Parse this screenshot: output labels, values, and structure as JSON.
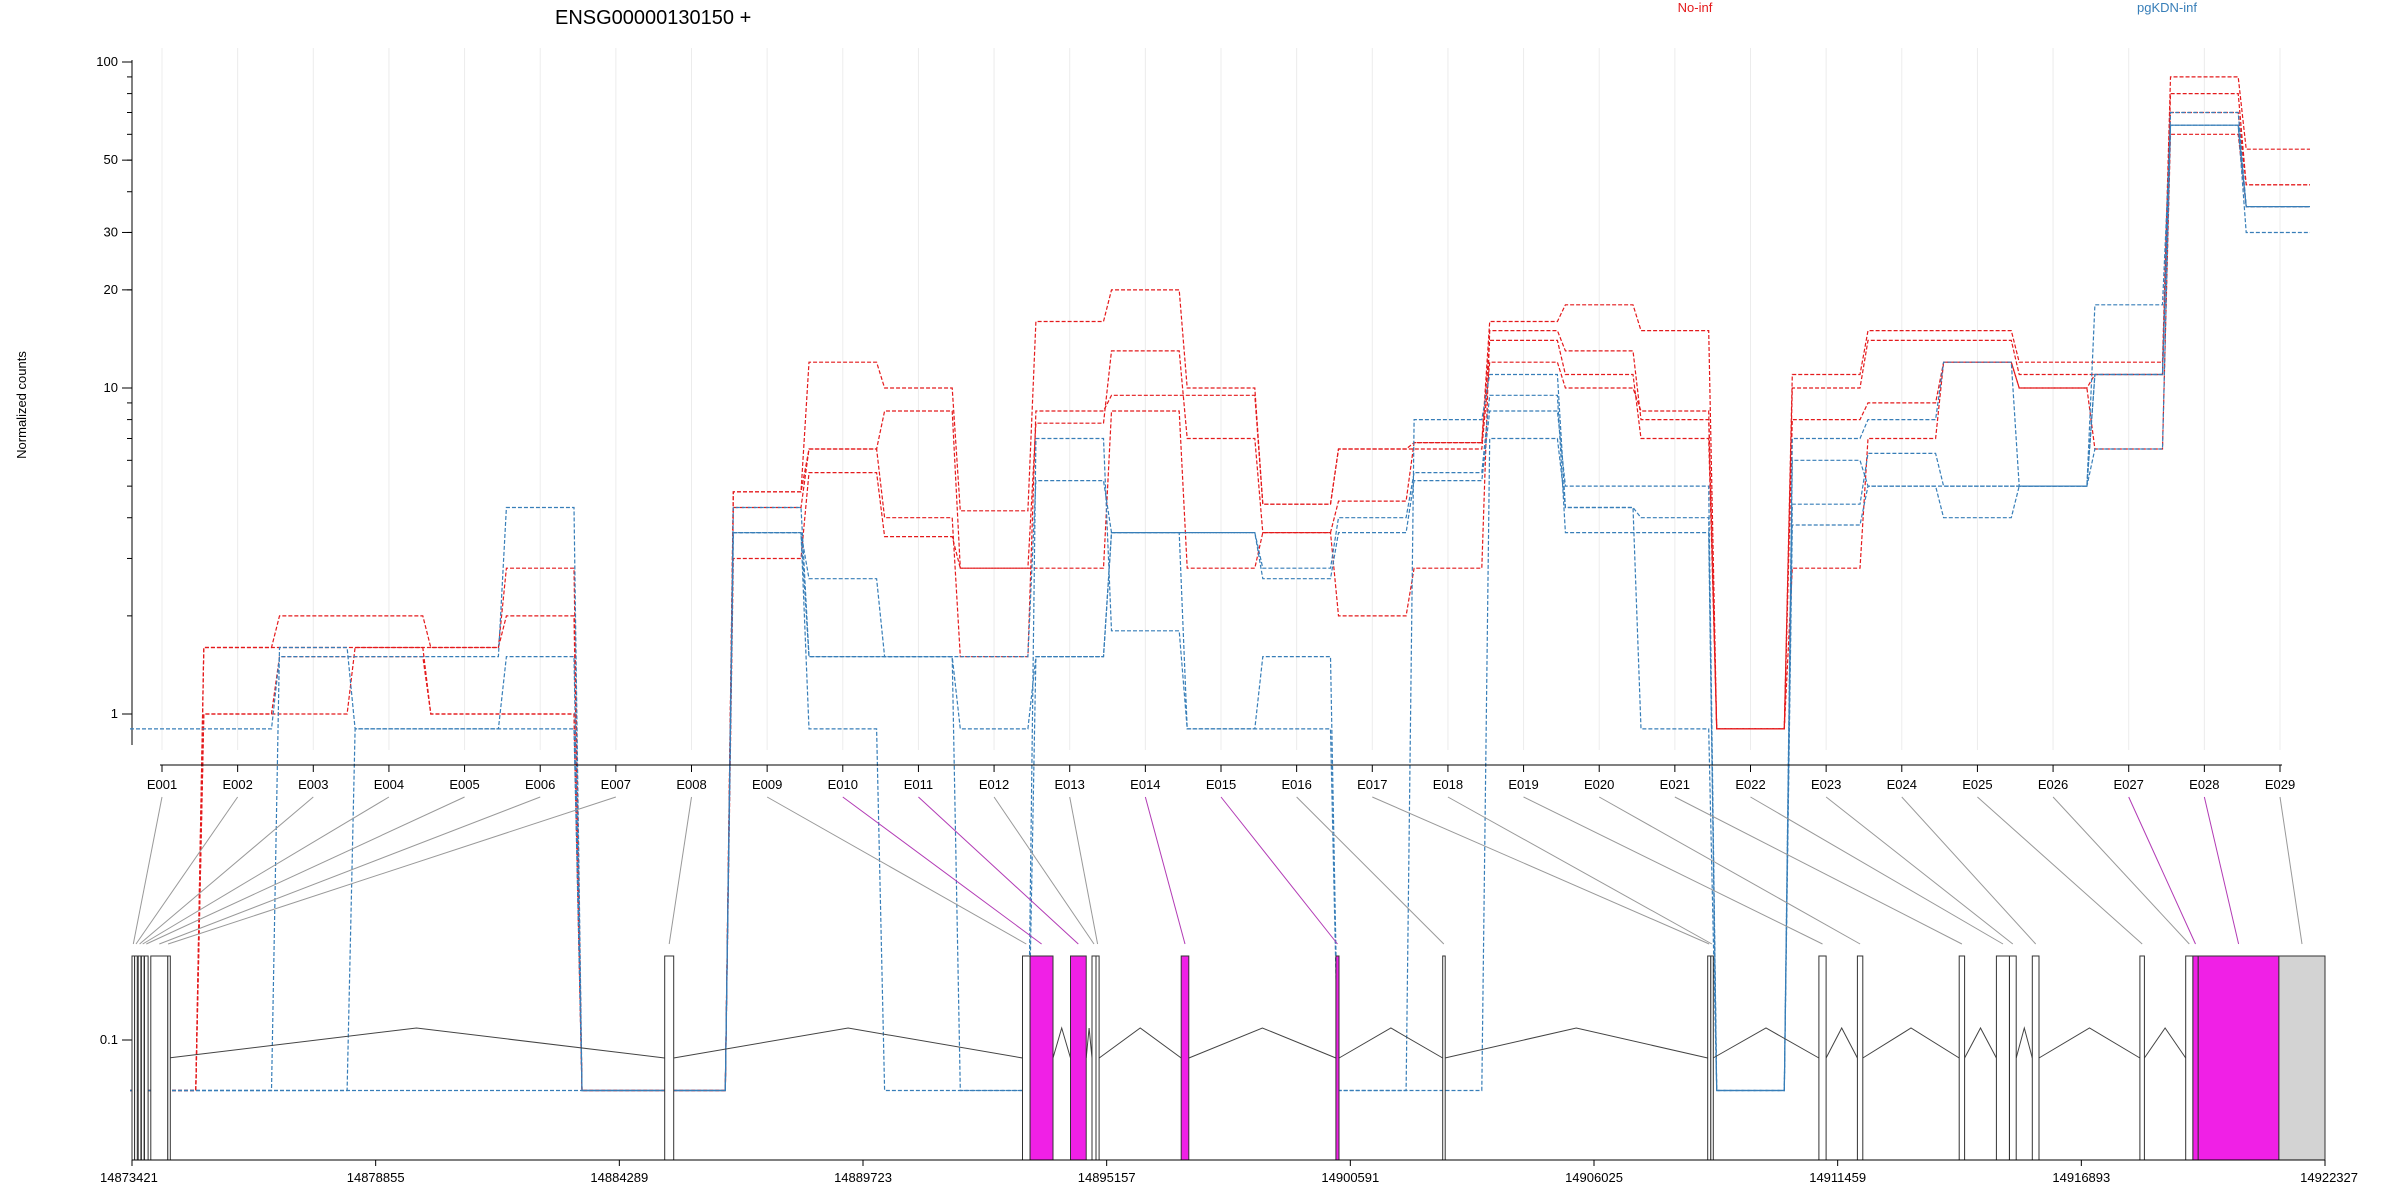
{
  "chart_data": {
    "type": "line",
    "title": "ENSG00000130150 +",
    "ylabel": "Normalized counts",
    "xlabel": "",
    "y_scale": "log",
    "ylim": [
      0.07,
      100
    ],
    "y_ticks": [
      {
        "value": 0.1,
        "label": "0.1"
      },
      {
        "value": 1,
        "label": "1"
      },
      {
        "value": 10,
        "label": "10"
      },
      {
        "value": 20,
        "label": "20"
      },
      {
        "value": 30,
        "label": "30"
      },
      {
        "value": 50,
        "label": "50"
      },
      {
        "value": 100,
        "label": "100"
      }
    ],
    "categories": [
      "E001",
      "E002",
      "E003",
      "E004",
      "E005",
      "E006",
      "E007",
      "E008",
      "E009",
      "E010",
      "E011",
      "E012",
      "E013",
      "E014",
      "E015",
      "E016",
      "E017",
      "E018",
      "E019",
      "E020",
      "E021",
      "E022",
      "E023",
      "E024",
      "E025",
      "E026",
      "E027",
      "E028",
      "E029"
    ],
    "legend": [
      {
        "label": "No-inf",
        "color": "#e41a1c"
      },
      {
        "label": "pgKDN-inf",
        "color": "#377eb8"
      }
    ],
    "series": [
      {
        "group": "No-inf",
        "values": [
          0.07,
          1.6,
          2,
          2,
          1.6,
          2.8,
          0.07,
          0.07,
          4.8,
          12,
          10,
          4.2,
          16,
          20,
          10,
          4.4,
          6.5,
          6.8,
          16,
          18,
          15,
          0.9,
          11,
          15,
          15,
          12,
          12,
          90,
          54
        ]
      },
      {
        "group": "No-inf",
        "values": [
          0.07,
          1,
          1.5,
          1.5,
          1,
          1,
          0.07,
          0.07,
          4.3,
          6.5,
          8.5,
          2.8,
          7.8,
          13,
          7,
          3.6,
          2,
          2.8,
          15,
          13,
          8,
          0.9,
          10,
          14,
          14,
          11,
          11,
          80,
          42
        ]
      },
      {
        "group": "No-inf",
        "values": [
          0.07,
          1.6,
          1.6,
          1.6,
          1.6,
          2,
          0.07,
          0.07,
          4.8,
          6.5,
          4,
          1.5,
          8.5,
          9.5,
          9.5,
          4.4,
          6.5,
          6.5,
          12,
          10,
          8.5,
          0.9,
          8,
          9,
          12,
          10,
          11,
          70,
          42
        ]
      },
      {
        "group": "No-inf",
        "values": [
          0.07,
          1,
          1,
          1.6,
          1,
          1,
          0.07,
          0.07,
          3,
          5.5,
          3.5,
          2.8,
          2.8,
          8.5,
          2.8,
          3.6,
          4.5,
          6.8,
          14,
          11,
          7,
          0.9,
          2.8,
          7,
          12,
          10,
          6.5,
          60,
          36
        ]
      },
      {
        "group": "pgKDN-inf",
        "values": [
          0.9,
          0.9,
          1.5,
          1.5,
          1.5,
          4.3,
          0.07,
          0.07,
          4.3,
          1.5,
          1.5,
          0.9,
          1.5,
          3.6,
          3.6,
          2.8,
          4,
          5.5,
          9.5,
          3.6,
          3.6,
          0.07,
          4.4,
          6.3,
          5,
          5,
          18,
          64,
          30
        ]
      },
      {
        "group": "pgKDN-inf",
        "values": [
          0.07,
          0.07,
          1.6,
          0.9,
          0.9,
          0.9,
          0.07,
          0.07,
          3.6,
          2.6,
          1.5,
          1.5,
          5.2,
          3.6,
          3.6,
          2.6,
          3.6,
          5.2,
          8.5,
          5,
          5,
          0.07,
          3.8,
          5,
          5,
          5,
          11,
          64,
          36
        ]
      },
      {
        "group": "pgKDN-inf",
        "values": [
          0.07,
          0.07,
          0.07,
          0.9,
          0.9,
          1.5,
          0.07,
          0.07,
          3.6,
          1.5,
          1.5,
          0.07,
          7,
          1.8,
          0.9,
          1.5,
          0.07,
          8,
          11,
          4.3,
          4,
          0.07,
          7,
          8,
          12,
          5,
          11,
          70,
          36
        ]
      },
      {
        "group": "pgKDN-inf",
        "values": [
          0.07,
          0.07,
          0.07,
          0.07,
          0.07,
          0.07,
          0.07,
          0.07,
          3.6,
          0.9,
          0.07,
          0.07,
          1.5,
          3.6,
          0.9,
          0.9,
          0.07,
          0.07,
          7,
          4.3,
          0.9,
          0.07,
          6,
          5,
          4,
          5,
          6.5,
          64,
          36
        ]
      }
    ],
    "gene_model": {
      "genomic_ticks": [
        "14873421",
        "14878855",
        "14884289",
        "14889723",
        "14895157",
        "14900591",
        "14906025",
        "14911459",
        "14916893",
        "14922327"
      ],
      "exons": [
        {
          "id": "E001",
          "start": 14873421,
          "end": 14873480,
          "highlight": false
        },
        {
          "id": "E002",
          "start": 14873480,
          "end": 14873540,
          "highlight": false
        },
        {
          "id": "E003",
          "start": 14873560,
          "end": 14873620,
          "highlight": false
        },
        {
          "id": "E004",
          "start": 14873630,
          "end": 14873690,
          "highlight": false
        },
        {
          "id": "E005",
          "start": 14873700,
          "end": 14873780,
          "highlight": false
        },
        {
          "id": "E006",
          "start": 14873840,
          "end": 14874220,
          "highlight": false
        },
        {
          "id": "E007",
          "start": 14874220,
          "end": 14874230,
          "highlight": false
        },
        {
          "id": "E008",
          "start": 14885300,
          "end": 14885500,
          "highlight": false
        },
        {
          "id": "E009",
          "start": 14893280,
          "end": 14893450,
          "highlight": false
        },
        {
          "id": "E010",
          "start": 14893450,
          "end": 14893960,
          "highlight": true
        },
        {
          "id": "E011",
          "start": 14894350,
          "end": 14894700,
          "highlight": true
        },
        {
          "id": "E012",
          "start": 14894830,
          "end": 14894920,
          "highlight": false
        },
        {
          "id": "E013",
          "start": 14894920,
          "end": 14894990,
          "highlight": false
        },
        {
          "id": "E014",
          "start": 14896820,
          "end": 14896990,
          "highlight": true
        },
        {
          "id": "E015",
          "start": 14900270,
          "end": 14900340,
          "highlight": true
        },
        {
          "id": "E016",
          "start": 14902650,
          "end": 14902700,
          "highlight": false
        },
        {
          "id": "E017",
          "start": 14908560,
          "end": 14908630,
          "highlight": false
        },
        {
          "id": "E018",
          "start": 14908630,
          "end": 14908680,
          "highlight": false
        },
        {
          "id": "E019",
          "start": 14911040,
          "end": 14911200,
          "highlight": false
        },
        {
          "id": "E020",
          "start": 14911900,
          "end": 14912020,
          "highlight": false
        },
        {
          "id": "E021",
          "start": 14914170,
          "end": 14914290,
          "highlight": false
        },
        {
          "id": "E022",
          "start": 14915000,
          "end": 14915290,
          "highlight": false
        },
        {
          "id": "E023",
          "start": 14915290,
          "end": 14915440,
          "highlight": false
        },
        {
          "id": "E024",
          "start": 14915800,
          "end": 14915950,
          "highlight": false
        },
        {
          "id": "E025",
          "start": 14918200,
          "end": 14918300,
          "highlight": false
        },
        {
          "id": "E026",
          "start": 14919220,
          "end": 14919380,
          "highlight": false
        },
        {
          "id": "E027",
          "start": 14919380,
          "end": 14919500,
          "highlight": true
        },
        {
          "id": "E028",
          "start": 14919500,
          "end": 14921300,
          "highlight": true
        },
        {
          "id": "E029",
          "start": 14921300,
          "end": 14922327,
          "highlight": false
        }
      ]
    }
  }
}
